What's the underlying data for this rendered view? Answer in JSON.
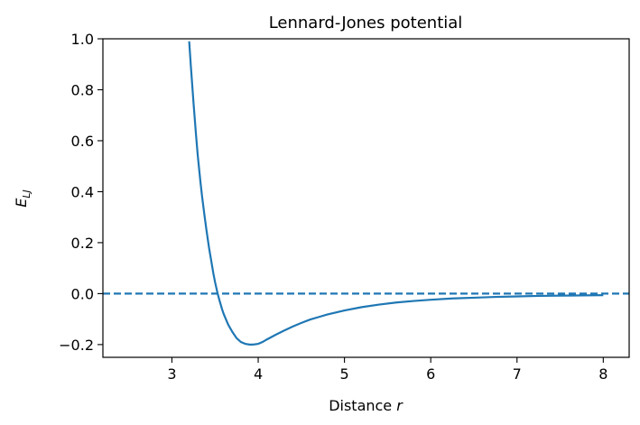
{
  "chart_data": {
    "type": "line",
    "title": "Lennard-Jones potential",
    "xlabel": "Distance r",
    "xlabel_parts": {
      "text": "Distance ",
      "var": "r"
    },
    "ylabel": "E_LJ",
    "ylabel_parts": {
      "base": "E",
      "sub": "LJ"
    },
    "xlim": [
      2.2,
      8.3
    ],
    "ylim": [
      -0.25,
      1.0
    ],
    "x_ticks": [
      3,
      4,
      5,
      6,
      7,
      8
    ],
    "x_tick_labels": [
      "3",
      "4",
      "5",
      "6",
      "7",
      "8"
    ],
    "y_ticks": [
      -0.2,
      0.0,
      0.2,
      0.4,
      0.6,
      0.8,
      1.0
    ],
    "y_tick_labels": [
      "−0.2",
      "0.0",
      "0.2",
      "0.4",
      "0.6",
      "0.8",
      "1.0"
    ],
    "grid": false,
    "line_color": "#1f77b4",
    "series": [
      {
        "x": [
          3.2,
          3.22,
          3.25,
          3.28,
          3.3,
          3.33,
          3.35,
          3.38,
          3.4,
          3.43,
          3.45,
          3.48,
          3.5,
          3.53,
          3.55,
          3.58,
          3.6,
          3.65,
          3.7,
          3.75,
          3.8,
          3.85,
          3.9,
          3.93,
          3.96,
          4.0,
          4.05,
          4.1,
          4.2,
          4.3,
          4.4,
          4.5,
          4.6,
          4.7,
          4.8,
          5.0,
          5.2,
          5.4,
          5.6,
          5.8,
          6.0,
          6.25,
          6.5,
          6.75,
          7.0,
          7.25,
          7.5,
          7.75,
          8.0
        ],
        "y": [
          0.99,
          0.89,
          0.75,
          0.62,
          0.54,
          0.44,
          0.38,
          0.3,
          0.25,
          0.18,
          0.14,
          0.08,
          0.045,
          0.0,
          -0.025,
          -0.06,
          -0.08,
          -0.12,
          -0.15,
          -0.175,
          -0.19,
          -0.197,
          -0.2,
          -0.2,
          -0.199,
          -0.197,
          -0.19,
          -0.18,
          -0.162,
          -0.145,
          -0.129,
          -0.115,
          -0.102,
          -0.092,
          -0.082,
          -0.066,
          -0.053,
          -0.043,
          -0.035,
          -0.029,
          -0.024,
          -0.019,
          -0.016,
          -0.013,
          -0.011,
          -0.009,
          -0.008,
          -0.007,
          -0.006
        ]
      }
    ],
    "reference_line": {
      "y": 0.0,
      "style": "dashed",
      "color": "#1f77b4"
    }
  }
}
